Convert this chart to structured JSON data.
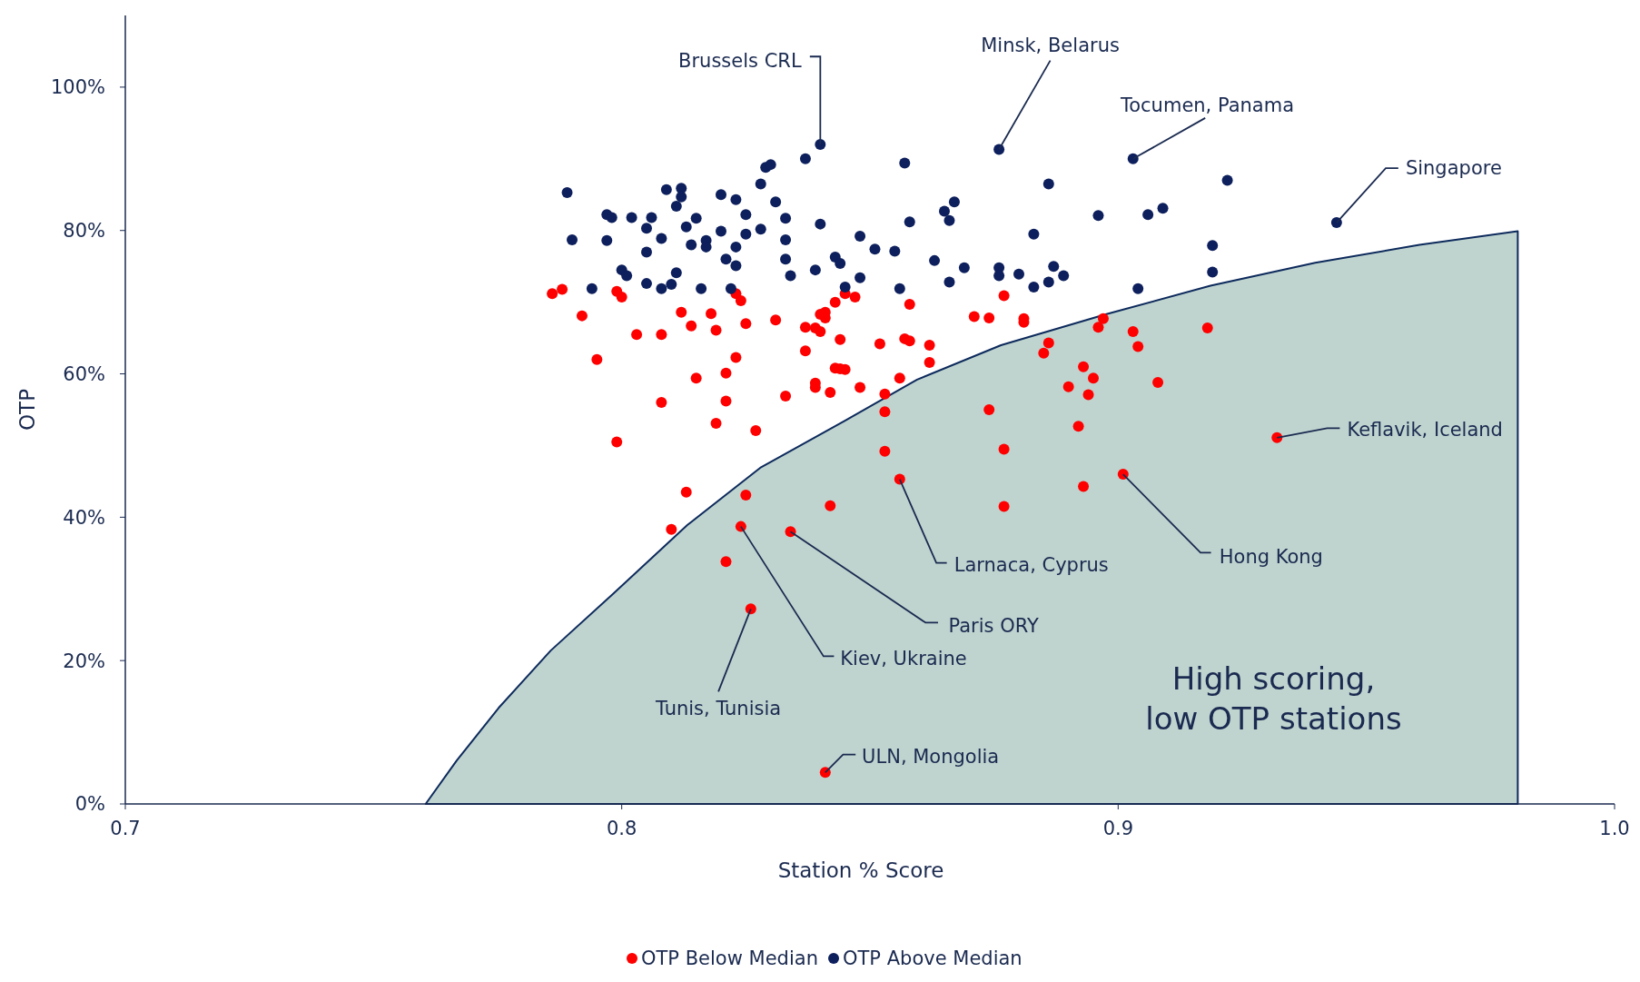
{
  "chart_data": {
    "type": "scatter",
    "xlabel": "Station % Score",
    "ylabel": "OTP",
    "xlim": [
      0.7,
      1.0
    ],
    "ylim": [
      0,
      110
    ],
    "xticks": [
      0.7,
      0.8,
      0.9,
      {
        "value": 1,
        "label": "1.0"
      }
    ],
    "yticks": [
      {
        "value": 0,
        "label": "0%"
      },
      {
        "value": 20,
        "label": "20%"
      },
      {
        "value": 40,
        "label": "40%"
      },
      {
        "value": 60,
        "label": "60%"
      },
      {
        "value": 80,
        "label": "80%"
      },
      {
        "value": 100,
        "label": "100%"
      }
    ],
    "grid": false,
    "legend": "bottom",
    "marker": "circle",
    "series": [
      {
        "name": "OTP Below Median",
        "color": "#ff0000",
        "x": [
          0.786,
          0.788,
          0.792,
          0.795,
          0.799,
          0.799,
          0.8,
          0.803,
          0.808,
          0.808,
          0.81,
          0.812,
          0.813,
          0.814,
          0.815,
          0.818,
          0.819,
          0.819,
          0.821,
          0.821,
          0.821,
          0.823,
          0.823,
          0.824,
          0.825,
          0.825,
          0.824,
          0.826,
          0.827,
          0.831,
          0.833,
          0.834,
          0.837,
          0.837,
          0.839,
          0.839,
          0.839,
          0.84,
          0.84,
          0.841,
          0.841,
          0.842,
          0.842,
          0.843,
          0.843,
          0.844,
          0.844,
          0.845,
          0.845,
          0.847,
          0.848,
          0.841,
          0.852,
          0.853,
          0.853,
          0.853,
          0.856,
          0.856,
          0.857,
          0.858,
          0.858,
          0.862,
          0.862,
          0.871,
          0.874,
          0.874,
          0.877,
          0.877,
          0.877,
          0.881,
          0.881,
          0.885,
          0.886,
          0.89,
          0.892,
          0.893,
          0.893,
          0.894,
          0.895,
          0.896,
          0.897,
          0.901,
          0.903,
          0.904,
          0.908,
          0.918,
          0.932
        ],
        "values": [
          71.2,
          71.8,
          68.1,
          62.0,
          50.5,
          71.5,
          70.7,
          65.5,
          65.5,
          56.0,
          38.3,
          68.6,
          43.5,
          66.7,
          59.4,
          68.4,
          53.1,
          66.1,
          56.2,
          33.8,
          60.1,
          71.2,
          62.3,
          70.2,
          67.0,
          43.1,
          38.7,
          27.2,
          52.1,
          67.5,
          56.9,
          38.0,
          66.5,
          63.2,
          58.1,
          58.7,
          66.4,
          68.3,
          65.9,
          67.8,
          68.6,
          57.4,
          41.6,
          70.0,
          60.8,
          64.8,
          60.7,
          60.6,
          71.2,
          70.7,
          58.1,
          4.4,
          64.2,
          57.2,
          54.7,
          49.2,
          59.4,
          45.3,
          64.9,
          64.6,
          69.7,
          61.6,
          64.0,
          68.0,
          67.8,
          55.0,
          70.9,
          49.5,
          41.5,
          67.2,
          67.7,
          62.9,
          64.3,
          58.2,
          52.7,
          61.0,
          44.3,
          57.1,
          59.4,
          66.5,
          67.7,
          46.0,
          65.9,
          63.8,
          58.8,
          66.4,
          51.1
        ]
      },
      {
        "name": "OTP Above Median",
        "color": "#0d1f5c",
        "x": [
          0.789,
          0.79,
          0.794,
          0.797,
          0.797,
          0.798,
          0.8,
          0.801,
          0.802,
          0.805,
          0.805,
          0.806,
          0.805,
          0.808,
          0.808,
          0.809,
          0.81,
          0.811,
          0.812,
          0.812,
          0.811,
          0.813,
          0.815,
          0.814,
          0.816,
          0.817,
          0.817,
          0.82,
          0.82,
          0.821,
          0.822,
          0.823,
          0.823,
          0.823,
          0.825,
          0.825,
          0.828,
          0.828,
          0.829,
          0.83,
          0.831,
          0.833,
          0.833,
          0.833,
          0.834,
          0.837,
          0.839,
          0.84,
          0.84,
          0.843,
          0.844,
          0.845,
          0.848,
          0.848,
          0.851,
          0.855,
          0.856,
          0.857,
          0.858,
          0.863,
          0.865,
          0.866,
          0.866,
          0.867,
          0.869,
          0.876,
          0.876,
          0.876,
          0.88,
          0.883,
          0.883,
          0.886,
          0.886,
          0.887,
          0.889,
          0.896,
          0.904,
          0.903,
          0.906,
          0.909,
          0.919,
          0.919,
          0.922,
          0.944
        ],
        "values": [
          85.3,
          78.7,
          71.9,
          82.2,
          78.6,
          81.8,
          74.5,
          73.7,
          81.8,
          72.6,
          80.3,
          81.8,
          77.0,
          71.9,
          78.9,
          85.7,
          72.5,
          83.4,
          85.9,
          84.7,
          74.1,
          80.5,
          81.7,
          78.0,
          71.9,
          78.6,
          77.7,
          85.0,
          79.9,
          76.0,
          71.9,
          75.1,
          84.3,
          77.7,
          82.2,
          79.5,
          86.5,
          80.2,
          88.8,
          89.2,
          84.0,
          78.7,
          81.7,
          76.0,
          73.7,
          90.0,
          74.5,
          92.0,
          80.9,
          76.3,
          75.4,
          72.1,
          73.4,
          79.2,
          77.4,
          77.1,
          71.9,
          89.4,
          81.2,
          75.8,
          82.7,
          72.8,
          81.4,
          84.0,
          74.8,
          91.3,
          74.8,
          73.7,
          73.9,
          79.5,
          72.1,
          72.8,
          86.5,
          75.0,
          73.7,
          82.1,
          71.9,
          90.0,
          82.2,
          83.1,
          77.9,
          74.2,
          87.0,
          81.1
        ]
      },
      {
        "type": "area",
        "marker": "none",
        "color": "#bfd4cf",
        "x": [
          0.7605,
          0.7668,
          0.7752,
          0.7857,
          0.7984,
          0.8132,
          0.8279,
          0.8448,
          0.8595,
          0.8764,
          0.8975,
          0.9186,
          0.9397,
          0.9607,
          0.9805
        ],
        "values": [
          0,
          6.1,
          13.4,
          21.4,
          29.4,
          38.9,
          46.9,
          53.4,
          59.2,
          64.0,
          68.3,
          72.3,
          75.5,
          78.0,
          79.9
        ]
      }
    ],
    "annotations": [
      {
        "text": "Brussels CRL",
        "x": 0.84,
        "y": 92.0
      },
      {
        "text": "Minsk, Belarus",
        "x": 0.876,
        "y": 91.3
      },
      {
        "text": "Tocumen, Panama",
        "x": 0.903,
        "y": 90.0
      },
      {
        "text": "Singapore",
        "x": 0.944,
        "y": 81.1
      },
      {
        "text": "Keflavik, Iceland",
        "x": 0.932,
        "y": 51.1
      },
      {
        "text": "Hong Kong",
        "x": 0.901,
        "y": 46.0
      },
      {
        "text": "Larnaca, Cyprus",
        "x": 0.856,
        "y": 45.3
      },
      {
        "text": "Paris ORY",
        "x": 0.834,
        "y": 38.0
      },
      {
        "text": "Kiev, Ukraine",
        "x": 0.824,
        "y": 38.7
      },
      {
        "text": "Tunis, Tunisia",
        "x": 0.826,
        "y": 27.2
      },
      {
        "text": "ULN, Mongolia",
        "x": 0.841,
        "y": 4.4
      },
      "High scoring,\nlow OTP stations"
    ]
  }
}
